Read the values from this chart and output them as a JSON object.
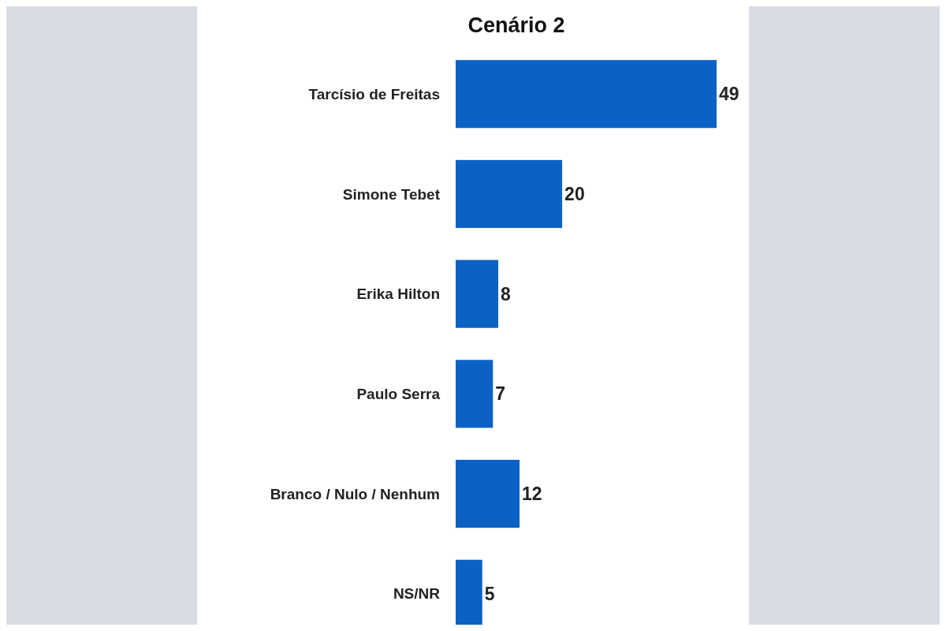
{
  "chart_data": {
    "type": "bar",
    "orientation": "horizontal",
    "title": "Cenário 2",
    "categories": [
      "Tarcísio de Freitas",
      "Simone Tebet",
      "Erika Hilton",
      "Paulo Serra",
      "Branco / Nulo / Nenhum",
      "NS/NR"
    ],
    "values": [
      49,
      20,
      8,
      7,
      12,
      5
    ],
    "color": "#0b62c4",
    "data_labels": true
  }
}
